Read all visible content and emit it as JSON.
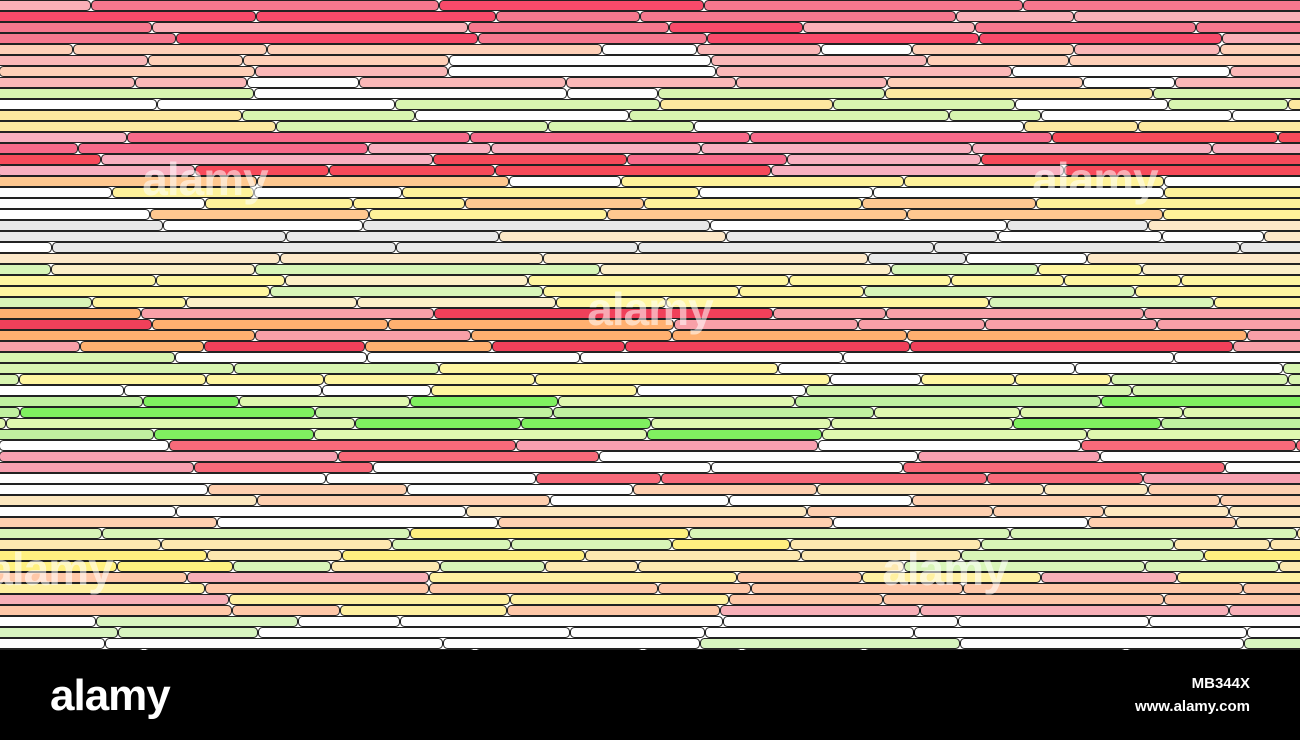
{
  "watermark": {
    "text": "alamy"
  },
  "footer": {
    "logo": "alamy",
    "image_id": "MB344X",
    "url": "www.alamy.com"
  }
}
